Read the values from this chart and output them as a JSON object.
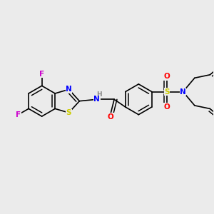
{
  "bg_color": "#ebebeb",
  "bond_color": "#000000",
  "figsize": [
    3.0,
    3.0
  ],
  "dpi": 100,
  "atom_colors": {
    "N": "#0000ff",
    "S": "#cccc00",
    "O": "#ff0000",
    "F": "#cc00cc",
    "C": "#000000",
    "H": "#888888"
  },
  "font_size": 7.5,
  "bond_lw": 1.2
}
